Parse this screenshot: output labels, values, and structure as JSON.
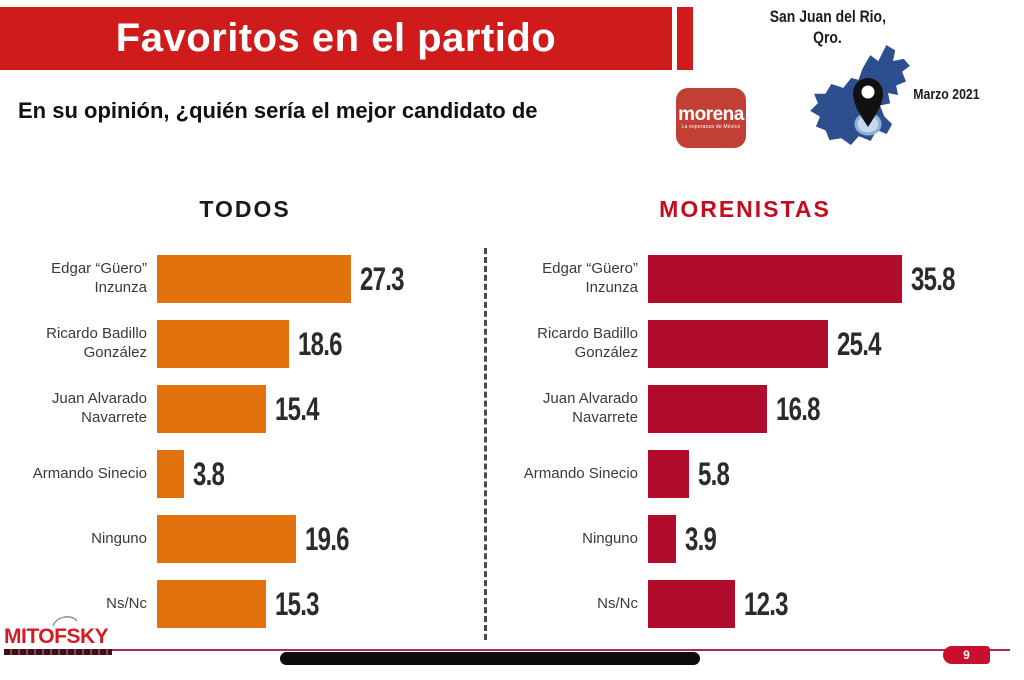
{
  "slide": {
    "title": "Favoritos en el partido",
    "subtitle": "En su opinión, ¿quién sería el mejor candidato de",
    "party_logo": {
      "name": "morena",
      "tagline": "La esperanza de México"
    },
    "location": {
      "city": "San Juan del Rio,",
      "state_abbr": "Qro.",
      "date": "Marzo 2021"
    },
    "footer": {
      "brand": "MITOFSKY",
      "page_number": "9"
    }
  },
  "colors": {
    "banner_red": "#CF1B1B",
    "todos_orange": "#E2720E",
    "morenistas_crimson": "#B00D2D",
    "morenistas_title_red": "#C30D1E",
    "morena_logo_red": "#C23F35",
    "map_blue": "#2E4F8F",
    "footer_line": "#B02A50",
    "badge_red": "#C8102E",
    "mitofsky_red": "#D11C24"
  },
  "chart_data": [
    {
      "type": "bar",
      "orientation": "horizontal",
      "title": "TODOS",
      "bar_color": "#E2720E",
      "categories": [
        "Edgar “Güero” Inzunza",
        "Ricardo Badillo González",
        "Juan Alvarado Navarrete",
        "Armando Sinecio",
        "Ninguno",
        "Ns/Nc"
      ],
      "values": [
        27.3,
        18.6,
        15.4,
        3.8,
        19.6,
        15.3
      ],
      "xlim": [
        0,
        40
      ],
      "data_labels": true,
      "grid": false,
      "legend": false
    },
    {
      "type": "bar",
      "orientation": "horizontal",
      "title": "MORENISTAS",
      "bar_color": "#B00D2D",
      "categories": [
        "Edgar “Güero” Inzunza",
        "Ricardo Badillo González",
        "Juan Alvarado Navarrete",
        "Armando Sinecio",
        "Ninguno",
        "Ns/Nc"
      ],
      "values": [
        35.8,
        25.4,
        16.8,
        5.8,
        3.9,
        12.3
      ],
      "xlim": [
        0,
        40
      ],
      "data_labels": true,
      "grid": false,
      "legend": false
    }
  ]
}
